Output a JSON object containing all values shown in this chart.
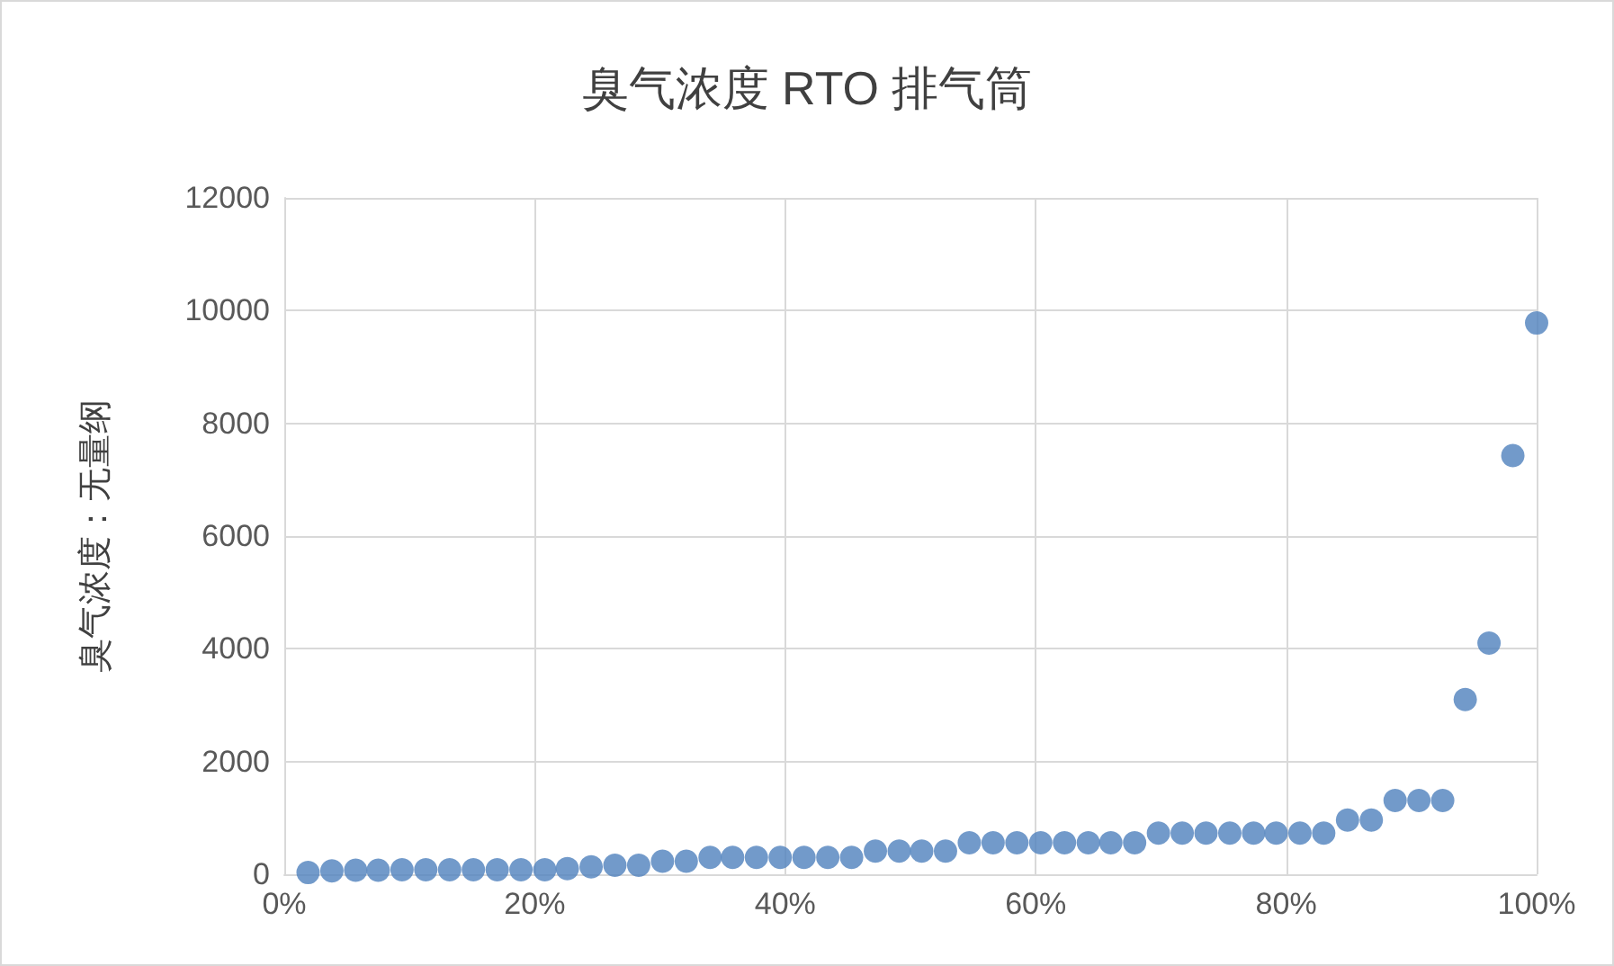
{
  "chart_data": {
    "type": "scatter",
    "title": "臭气浓度 RTO 排气筒",
    "ylabel": "臭气浓度：无量纲",
    "x": [
      1.9,
      3.8,
      5.7,
      7.5,
      9.4,
      11.3,
      13.2,
      15.1,
      17,
      18.9,
      20.8,
      22.6,
      24.5,
      26.4,
      28.3,
      30.2,
      32.1,
      34,
      35.8,
      37.7,
      39.6,
      41.5,
      43.4,
      45.3,
      47.2,
      49.1,
      50.9,
      52.8,
      54.7,
      56.6,
      58.5,
      60.4,
      62.3,
      64.2,
      66,
      67.9,
      69.8,
      71.7,
      73.6,
      75.5,
      77.4,
      79.2,
      81.1,
      83,
      84.9,
      86.8,
      88.7,
      90.6,
      92.5,
      94.3,
      96.2,
      98.1,
      100
    ],
    "series": [
      {
        "color": "#4f81bd",
        "values": [
          30,
          60,
          70,
          70,
          80,
          80,
          80,
          80,
          80,
          80,
          80,
          100,
          130,
          160,
          160,
          230,
          230,
          300,
          300,
          300,
          300,
          300,
          300,
          300,
          410,
          410,
          410,
          410,
          560,
          560,
          560,
          560,
          560,
          560,
          560,
          560,
          730,
          730,
          730,
          730,
          730,
          730,
          730,
          730,
          960,
          960,
          1310,
          1310,
          1310,
          3100,
          4100,
          7430,
          9780
        ]
      }
    ],
    "xlim": [
      0,
      100
    ],
    "xticks": [
      {
        "value": 0,
        "label": "0%"
      },
      {
        "value": 20,
        "label": "20%"
      },
      {
        "value": 40,
        "label": "40%"
      },
      {
        "value": 60,
        "label": "60%"
      },
      {
        "value": 80,
        "label": "80%"
      },
      {
        "value": 100,
        "label": "100%"
      }
    ],
    "ylim": [
      0,
      12000
    ],
    "yticks": [
      0,
      2000,
      4000,
      6000,
      8000,
      10000,
      12000
    ],
    "grid": true,
    "marker": "circle"
  }
}
